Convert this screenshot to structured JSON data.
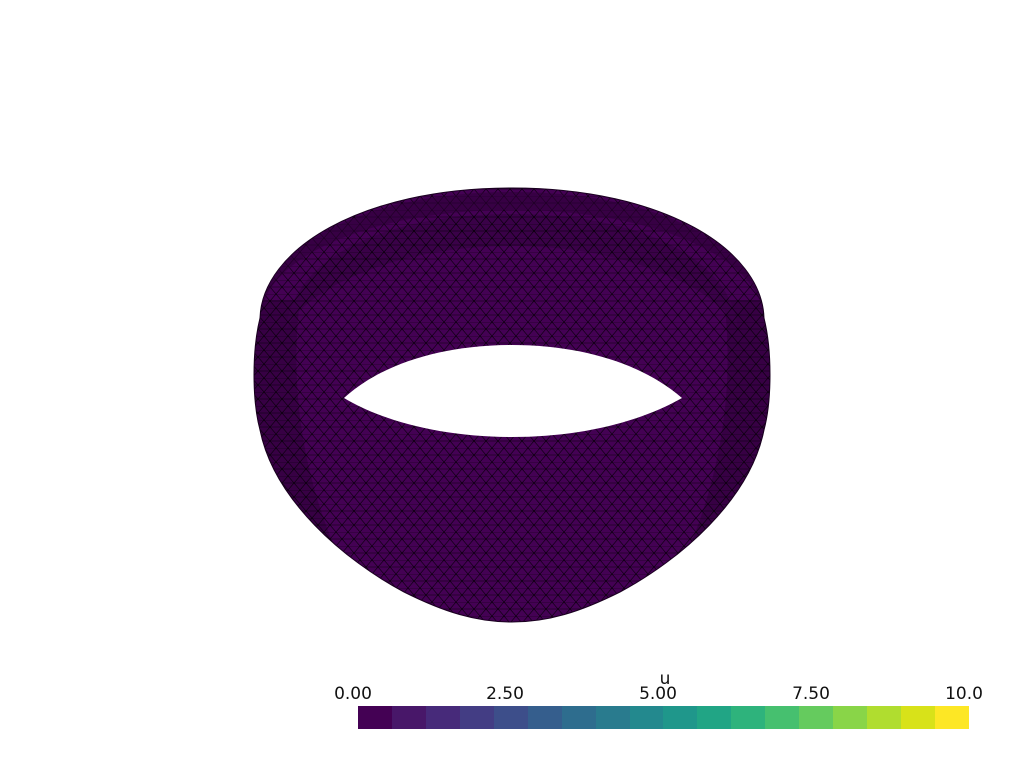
{
  "scene": {
    "object": "deformed-ring-mesh",
    "surface_color": "#440154",
    "edge_color": "#000000",
    "background": "#ffffff"
  },
  "scalar_bar": {
    "title": "u",
    "ticks": [
      "0.00",
      "2.50",
      "5.00",
      "7.50",
      "10.0"
    ],
    "range": [
      0,
      10
    ],
    "colors": [
      "#440154",
      "#481769",
      "#472a7a",
      "#433d84",
      "#3d4e8a",
      "#355e8d",
      "#2e6d8e",
      "#297b8e",
      "#23898e",
      "#1f978b",
      "#21a585",
      "#2eb37c",
      "#46c06f",
      "#65cb5e",
      "#89d548",
      "#b0dd2f",
      "#d8e219",
      "#fde725"
    ]
  }
}
